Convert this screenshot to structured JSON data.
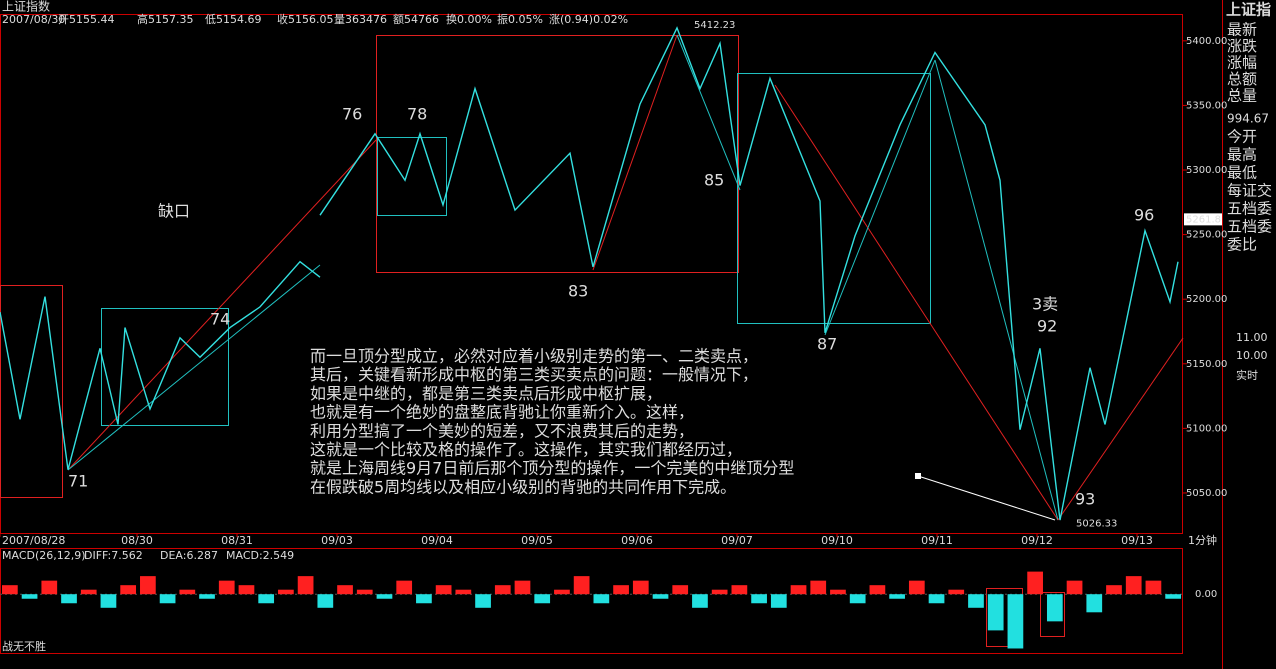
{
  "chart_data": [
    {
      "type": "line",
      "title": "上证指数",
      "x": [
        -0.37,
        -0.17,
        0.08,
        0.31,
        0.63,
        0.81,
        0.88,
        1.13,
        1.43,
        1.63,
        1.93,
        2.23,
        2.63,
        2.83,
        2.83,
        2.83,
        3.38,
        3.68,
        3.83,
        4.06,
        4.38,
        4.78,
        5.33,
        5.56,
        6.03,
        6.4,
        6.63,
        6.83,
        7.03,
        7.33,
        7.83,
        7.88,
        8.18,
        8.63,
        8.98,
        9.48,
        9.63,
        9.83,
        10.03,
        10.23,
        10.53,
        10.68,
        11.08,
        11.33,
        11.41
      ],
      "values": [
        5190,
        5107,
        5202,
        5068,
        5162,
        5103,
        5178,
        5115,
        5170,
        5155,
        5178,
        5194,
        5229,
        5217,
        null,
        5265,
        5328,
        5292,
        5328,
        5273,
        5363,
        5269,
        5313,
        5225,
        5351,
        5410,
        5363,
        5398,
        5288,
        5371,
        5276,
        5174,
        5249,
        5335,
        5391,
        5335,
        5292,
        5099,
        5162,
        5029,
        5147,
        5103,
        5253,
        5198,
        5229
      ],
      "color": "#33e0e0",
      "xlim": [
        -0.37,
        11.46
      ],
      "xticks": [
        {
          "value": -0.37,
          "label": "2007/08/28"
        },
        {
          "value": 1,
          "label": "08/30"
        },
        {
          "value": 2,
          "label": "08/31"
        },
        {
          "value": 3,
          "label": "09/03"
        },
        {
          "value": 4,
          "label": "09/04"
        },
        {
          "value": 5,
          "label": "09/05"
        },
        {
          "value": 6,
          "label": "09/06"
        },
        {
          "value": 7,
          "label": "09/07"
        },
        {
          "value": 8,
          "label": "09/10"
        },
        {
          "value": 9,
          "label": "09/11"
        },
        {
          "value": 10,
          "label": "09/12"
        },
        {
          "value": 11,
          "label": "09/13"
        }
      ],
      "ylim": [
        5019,
        5420
      ],
      "yticks": [
        {
          "value": 5050,
          "label": "5050.00"
        },
        {
          "value": 5100,
          "label": "5100.00"
        },
        {
          "value": 5150,
          "label": "5150.00"
        },
        {
          "value": 5200,
          "label": "5200.00"
        },
        {
          "value": 5250,
          "label": "5250.00"
        },
        {
          "value": 5300,
          "label": "5300.00"
        },
        {
          "value": 5350,
          "label": "5350.00"
        },
        {
          "value": 5400,
          "label": "5400.00"
        }
      ],
      "high": 5412.23,
      "low": 5026.33,
      "last_price": 5261.8,
      "period": "1分钟",
      "annotations": [
        "71",
        "74",
        "76",
        "78",
        "83",
        "85",
        "87",
        "92",
        "93",
        "96",
        "3卖",
        "缺口"
      ],
      "note_lines": [
        "而一旦顶分型成立，必然对应着小级别走势的第一、二类卖点，",
        "其后，关键看新形成中枢的第三类买卖点的问题：一般情况下，",
        "如果是中继的，都是第三类卖点后形成中枢扩展，",
        "也就是有一个绝妙的盘整底背驰让你重新介入。这样，",
        "利用分型搞了一个美妙的短差，又不浪费其后的走势，",
        "这就是一个比较及格的操作了。这操作，其实我们都经历过，",
        "就是上海周线9月7日前后那个顶分型的操作，一个完美的中继顶分型",
        "在假跌破5周均线以及相应小级别的背驰的共同作用下完成。"
      ]
    },
    {
      "type": "histogram-bars",
      "title": "MACD(26,12,9)",
      "values": [
        2,
        -1,
        3,
        -2,
        1,
        -3,
        2,
        4,
        -2,
        1,
        -1,
        3,
        2,
        -2,
        1,
        4,
        -3,
        2,
        1,
        -1,
        3,
        -2,
        2,
        1,
        -3,
        2,
        3,
        -2,
        1,
        4,
        -2,
        2,
        3,
        -1,
        2,
        -3,
        1,
        2,
        -2,
        -3,
        2,
        3,
        1,
        -2,
        2,
        -1,
        3,
        -2,
        1,
        -3,
        -8,
        -12,
        5,
        -6,
        3,
        -4,
        2,
        4,
        3,
        -1
      ],
      "up_color": "#ff2020",
      "down_color": "#22e0e0",
      "ylim": [
        -13,
        10
      ],
      "yticks": [
        {
          "value": 0,
          "label": "0.00"
        }
      ],
      "indicators": [
        "DIFF:7.562",
        "DEA:6.287",
        "MACD:2.549"
      ]
    }
  ],
  "header": {
    "date": "2007/08/30",
    "fields": [
      "开5155.44",
      "高5157.35",
      "低5154.69",
      "收5156.05",
      "量363476",
      "额54766",
      "换0.00%",
      "振0.05%",
      "涨(0.94)0.02%"
    ]
  },
  "side_panel": {
    "title": "上证指",
    "labels": [
      "最新",
      "涨跌",
      "涨幅",
      "总额",
      "总量"
    ],
    "value": "994.67",
    "labels2": [
      "今开",
      "最高",
      "最低"
    ],
    "labels3": [
      "每证交",
      "五档委",
      "五档委",
      "委比"
    ],
    "extra": [
      "11.00",
      "10.00",
      "实时"
    ]
  },
  "footer": "战无不胜"
}
